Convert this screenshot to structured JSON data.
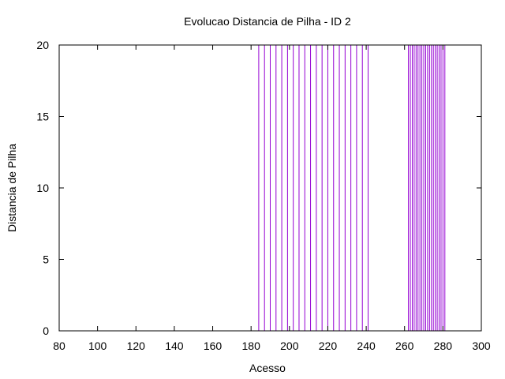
{
  "chart_data": {
    "type": "impulse",
    "title": "Evolucao Distancia de Pilha - ID 2",
    "xlabel": "Acesso",
    "ylabel": "Distancia de Pilha",
    "xlim": [
      80,
      300
    ],
    "ylim": [
      0,
      20
    ],
    "xticks": [
      80,
      100,
      120,
      140,
      160,
      180,
      200,
      220,
      240,
      260,
      280,
      300
    ],
    "yticks": [
      0,
      5,
      10,
      15,
      20
    ],
    "grid": false,
    "legend": "none",
    "series_color": "#9400d3",
    "series": [
      {
        "x": [
          184,
          187,
          190,
          193,
          196,
          199,
          202,
          205,
          208,
          211,
          214,
          217,
          220,
          223,
          226,
          229,
          232,
          235,
          238,
          241,
          262,
          263,
          264,
          265,
          266,
          267,
          268,
          269,
          270,
          271,
          272,
          273,
          274,
          275,
          276,
          277,
          278,
          279,
          280,
          281
        ],
        "y": [
          20,
          20,
          20,
          20,
          20,
          20,
          20,
          20,
          20,
          20,
          20,
          20,
          20,
          20,
          20,
          20,
          20,
          20,
          20,
          20,
          20,
          20,
          20,
          20,
          20,
          20,
          20,
          20,
          20,
          20,
          20,
          20,
          20,
          20,
          20,
          20,
          20,
          20,
          20,
          20
        ]
      }
    ]
  }
}
